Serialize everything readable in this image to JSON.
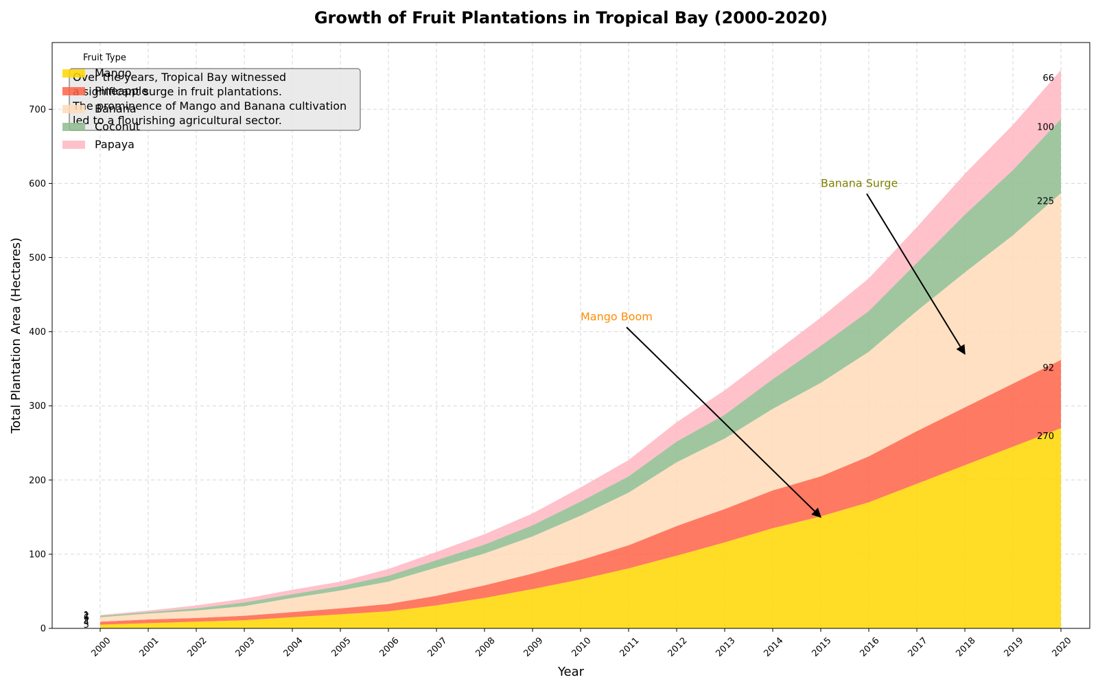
{
  "chart_data": {
    "type": "area",
    "stacked": true,
    "title": "Growth of Fruit Plantations in Tropical Bay (2000-2020)",
    "xlabel": "Year",
    "ylabel": "Total Plantation Area (Hectares)",
    "x": [
      2000,
      2001,
      2002,
      2003,
      2004,
      2005,
      2006,
      2007,
      2008,
      2009,
      2010,
      2011,
      2012,
      2013,
      2014,
      2015,
      2016,
      2017,
      2018,
      2019,
      2020
    ],
    "ylim": [
      0,
      790
    ],
    "yticks": [
      0,
      100,
      200,
      300,
      400,
      500,
      600,
      700
    ],
    "grid": true,
    "legend": {
      "title": "Fruit Type",
      "placement": "top-left"
    },
    "series": [
      {
        "name": "Mango",
        "color": "#FFD700",
        "values": [
          5,
          7,
          9,
          11,
          15,
          19,
          23,
          31,
          41,
          53,
          66,
          81,
          98,
          116,
          135,
          151,
          170,
          195,
          220,
          245,
          270
        ]
      },
      {
        "name": "Pineapple",
        "color": "#FF6347",
        "values": [
          4,
          5,
          5,
          6,
          7,
          8,
          10,
          13,
          17,
          21,
          26,
          31,
          40,
          45,
          51,
          54,
          62,
          71,
          78,
          85,
          92
        ]
      },
      {
        "name": "Banana",
        "color": "#FFDAB9",
        "values": [
          6,
          8,
          10,
          13,
          19,
          24,
          30,
          38,
          43,
          50,
          60,
          71,
          86,
          95,
          110,
          126,
          141,
          162,
          182,
          200,
          225
        ]
      },
      {
        "name": "Coconut",
        "color": "#8FBC8F",
        "values": [
          2,
          2,
          3,
          5,
          5,
          6,
          8,
          10,
          12,
          15,
          19,
          22,
          28,
          32,
          40,
          50,
          55,
          65,
          78,
          88,
          100
        ]
      },
      {
        "name": "Papaya",
        "color": "#FFB6C1",
        "values": [
          1,
          2,
          4,
          5,
          6,
          6,
          9,
          11,
          14,
          16,
          19,
          22,
          26,
          33,
          34,
          38,
          44,
          48,
          55,
          61,
          66
        ]
      }
    ],
    "start_labels": [
      "5",
      "4",
      "6",
      "2",
      "1"
    ],
    "end_labels": [
      "270",
      "92",
      "225",
      "100",
      "66"
    ],
    "note": [
      "Over the years, Tropical Bay witnessed",
      "a significant surge in fruit plantations.",
      "The prominence of Mango and Banana cultivation",
      "led to a flourishing agricultural sector."
    ],
    "annotations": [
      {
        "text": "Mango Boom",
        "text_x": 2010,
        "text_y": 420,
        "arrow_x": 2015,
        "arrow_y": 150,
        "color": "#FF8C00"
      },
      {
        "text": "Banana Surge",
        "text_x": 2015,
        "text_y": 600,
        "arrow_x": 2018,
        "arrow_y": 370,
        "color": "#808000"
      }
    ]
  }
}
